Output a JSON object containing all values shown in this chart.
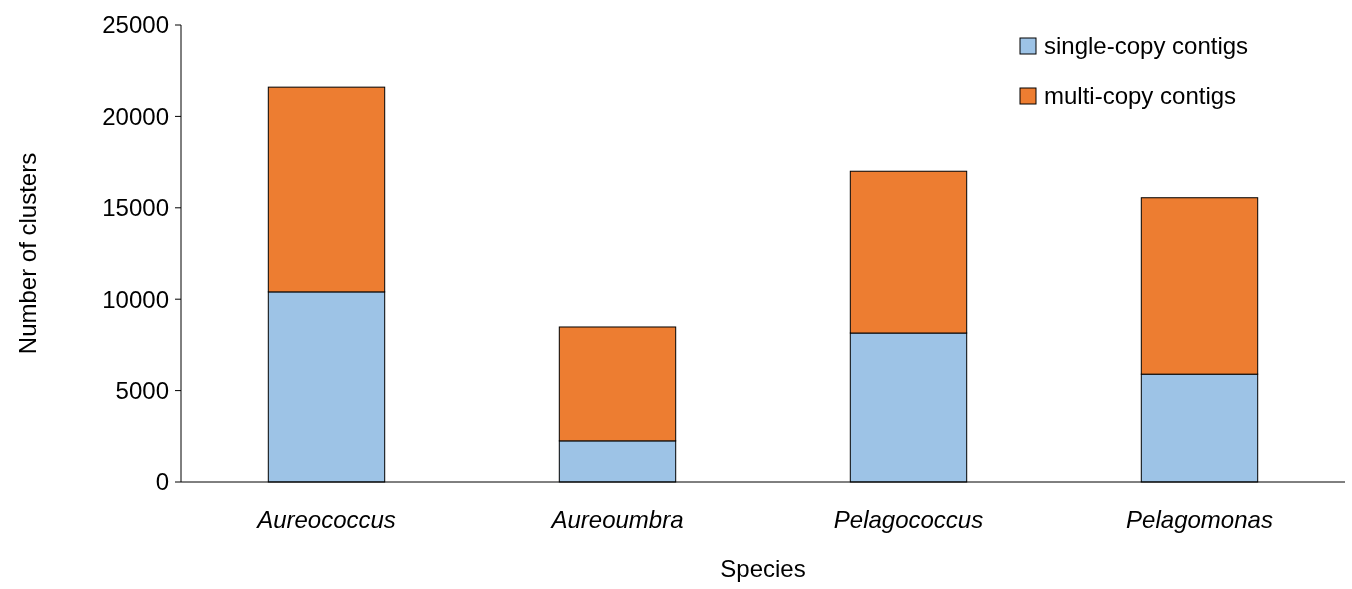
{
  "chart_data": {
    "type": "bar",
    "stacked": true,
    "xlabel": "Species",
    "ylabel": "Number of clusters",
    "categories": [
      "Aureococcus",
      "Aureoumbra",
      "Pelagococcus",
      "Pelagomonas"
    ],
    "series": [
      {
        "name": "single-copy contigs",
        "color": "#9dc3e6",
        "values": [
          10400,
          2250,
          8150,
          5900
        ]
      },
      {
        "name": "multi-copy contigs",
        "color": "#ed7d31",
        "values": [
          11200,
          6230,
          8850,
          9650
        ]
      }
    ],
    "ylim": [
      0,
      25000
    ],
    "yticks": [
      0,
      5000,
      10000,
      15000,
      20000,
      25000
    ],
    "grid": false,
    "legend": "top right"
  }
}
